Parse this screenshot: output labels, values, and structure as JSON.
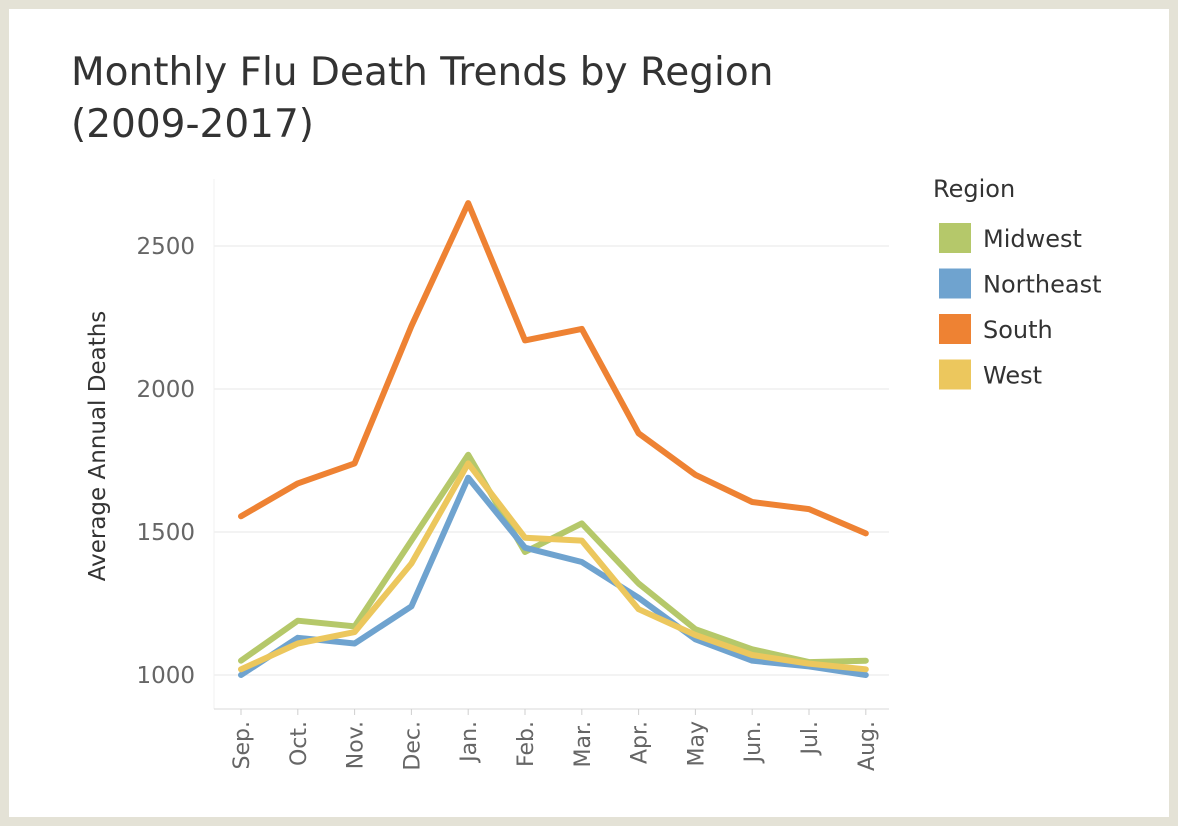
{
  "chart_data": {
    "type": "line",
    "title": [
      "Monthly Flu Death Trends by Region",
      "(2009-2017)"
    ],
    "ylabel": "Average Annual Deaths",
    "xlabel": "",
    "categories": [
      "Sep.",
      "Oct.",
      "Nov.",
      "Dec.",
      "Jan.",
      "Feb.",
      "Mar.",
      "Apr.",
      "May",
      "Jun.",
      "Jul.",
      "Aug."
    ],
    "ylim": [
      900,
      2700
    ],
    "yticks": [
      1000,
      1500,
      2000,
      2500
    ],
    "grid": true,
    "legend": {
      "title": "Region",
      "position": "right"
    },
    "series": [
      {
        "name": "Midwest",
        "color": "#b5c86a",
        "values": [
          1050,
          1190,
          1170,
          1470,
          1770,
          1430,
          1530,
          1320,
          1160,
          1090,
          1045,
          1050
        ]
      },
      {
        "name": "Northeast",
        "color": "#6fa3cf",
        "values": [
          1000,
          1130,
          1110,
          1240,
          1690,
          1445,
          1395,
          1270,
          1125,
          1050,
          1030,
          1000
        ]
      },
      {
        "name": "South",
        "color": "#ee8233",
        "values": [
          1555,
          1670,
          1740,
          2220,
          2650,
          2170,
          2210,
          1845,
          1700,
          1605,
          1580,
          1495
        ]
      },
      {
        "name": "West",
        "color": "#ecc75d",
        "values": [
          1020,
          1110,
          1150,
          1390,
          1740,
          1480,
          1470,
          1230,
          1140,
          1070,
          1040,
          1020
        ]
      }
    ]
  }
}
